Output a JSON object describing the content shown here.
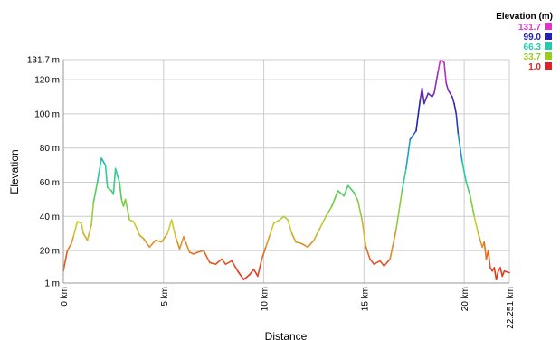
{
  "chart_data": {
    "type": "line",
    "title": "",
    "xlabel": "Distance",
    "ylabel": "Elevation",
    "xlim": [
      0,
      22.251
    ],
    "ylim": [
      1.0,
      131.7
    ],
    "x_ticks": [
      {
        "value": 0,
        "label": "0 km"
      },
      {
        "value": 5,
        "label": "5 km"
      },
      {
        "value": 10,
        "label": "10 km"
      },
      {
        "value": 15,
        "label": "15 km"
      },
      {
        "value": 20,
        "label": "20 km"
      },
      {
        "value": 22.251,
        "label": "22.251 km"
      }
    ],
    "y_ticks": [
      {
        "value": 1,
        "label": "1 m"
      },
      {
        "value": 20,
        "label": "20 m"
      },
      {
        "value": 40,
        "label": "40 m"
      },
      {
        "value": 60,
        "label": "60 m"
      },
      {
        "value": 80,
        "label": "80 m"
      },
      {
        "value": 100,
        "label": "100 m"
      },
      {
        "value": 120,
        "label": "120 m"
      },
      {
        "value": 131.7,
        "label": "131.7 m"
      }
    ],
    "grid": true,
    "legend": {
      "title": "Elevation (m)",
      "placement": "top-right",
      "entries": [
        {
          "label": "131.7",
          "color": "#dd33cc"
        },
        {
          "label": "99.0",
          "color": "#2222aa"
        },
        {
          "label": "66.3",
          "color": "#22ccaa"
        },
        {
          "label": "33.7",
          "color": "#99cc22"
        },
        {
          "label": "1.0",
          "color": "#dd2222"
        }
      ]
    },
    "series": [
      {
        "x": [
          0,
          0.2,
          0.4,
          0.5,
          0.7,
          0.9,
          1.0,
          1.2,
          1.4,
          1.5,
          1.7,
          1.9,
          2.1,
          2.2,
          2.4,
          2.5,
          2.6,
          2.8,
          2.9,
          3.0,
          3.1,
          3.3,
          3.5,
          3.7,
          3.8,
          4.0,
          4.3,
          4.6,
          4.9,
          5.2,
          5.4,
          5.6,
          5.8,
          6.0,
          6.3,
          6.5,
          6.7,
          7.0,
          7.3,
          7.6,
          7.9,
          8.1,
          8.4,
          8.7,
          9.0,
          9.3,
          9.5,
          9.7,
          9.9,
          10.1,
          10.3,
          10.5,
          10.8,
          11.0,
          11.2,
          11.4,
          11.6,
          11.9,
          12.2,
          12.5,
          12.8,
          13.1,
          13.4,
          13.7,
          14.0,
          14.2,
          14.5,
          14.7,
          14.9,
          15.1,
          15.3,
          15.5,
          15.8,
          16.0,
          16.3,
          16.6,
          16.9,
          17.1,
          17.3,
          17.6,
          17.8,
          17.9,
          18.0,
          18.2,
          18.4,
          18.5,
          18.7,
          18.8,
          18.9,
          19.0,
          19.1,
          19.2,
          19.3,
          19.4,
          19.5,
          19.6,
          19.7,
          19.9,
          20.1,
          20.3,
          20.5,
          20.7,
          20.9,
          21.0,
          21.1,
          21.2,
          21.3,
          21.4,
          21.5,
          21.6,
          21.7,
          21.8,
          21.9,
          22.0,
          22.251
        ],
        "y": [
          8,
          20,
          24,
          28,
          37,
          36,
          30,
          26,
          35,
          48,
          60,
          74,
          70,
          57,
          55,
          53,
          68,
          60,
          50,
          46,
          50,
          38,
          37,
          32,
          29,
          27,
          22,
          26,
          25,
          30,
          38,
          28,
          21,
          28,
          19,
          18,
          19,
          20,
          13,
          12,
          15,
          12,
          14,
          8,
          3,
          6,
          9,
          5,
          15,
          22,
          29,
          36,
          38,
          40,
          38,
          30,
          25,
          24,
          22,
          26,
          33,
          40,
          46,
          55,
          52,
          58,
          54,
          49,
          38,
          22,
          15,
          12,
          14,
          11,
          15,
          32,
          55,
          68,
          85,
          90,
          108,
          115,
          106,
          112,
          110,
          112,
          125,
          131,
          131,
          130,
          118,
          114,
          112,
          110,
          106,
          100,
          88,
          72,
          60,
          52,
          40,
          30,
          22,
          25,
          15,
          20,
          10,
          8,
          10,
          3,
          8,
          10,
          5,
          8,
          7
        ]
      }
    ]
  }
}
